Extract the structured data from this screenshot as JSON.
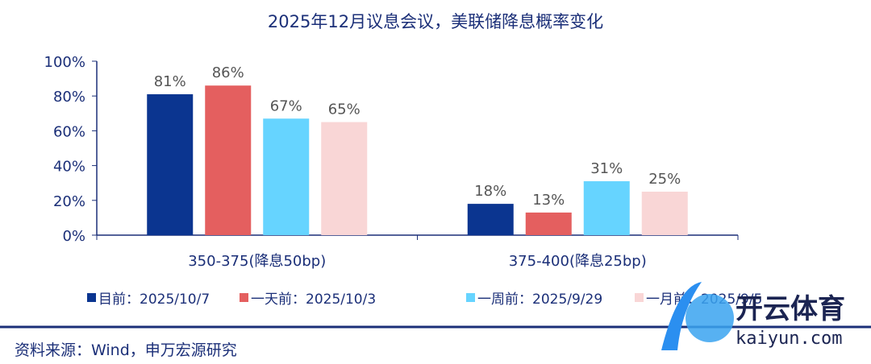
{
  "chart_data": {
    "type": "bar",
    "title": "2025年12月议息会议，美联储降息概率变化",
    "categories": [
      "350-375(降息50bp)",
      "375-400(降息25bp)"
    ],
    "series": [
      {
        "name": "目前：2025/10/7",
        "values": [
          81,
          18
        ],
        "color": "#0b3590"
      },
      {
        "name": "一天前：2025/10/3",
        "values": [
          86,
          13
        ],
        "color": "#e45f5f"
      },
      {
        "name": "一周前：2025/9/29",
        "values": [
          67,
          31
        ],
        "color": "#66d4ff"
      },
      {
        "name": "一月前：2025/9/5",
        "values": [
          65,
          25
        ],
        "color": "#f9d6d6"
      }
    ],
    "ylim": [
      0,
      100
    ],
    "yticks": [
      "0%",
      "20%",
      "40%",
      "60%",
      "80%",
      "100%"
    ],
    "legend": "bottom",
    "grid": false
  },
  "source": "资料来源：Wind，申万宏源研究",
  "watermark": {
    "text": "开云体育",
    "url_text": "kaiyun.com"
  }
}
